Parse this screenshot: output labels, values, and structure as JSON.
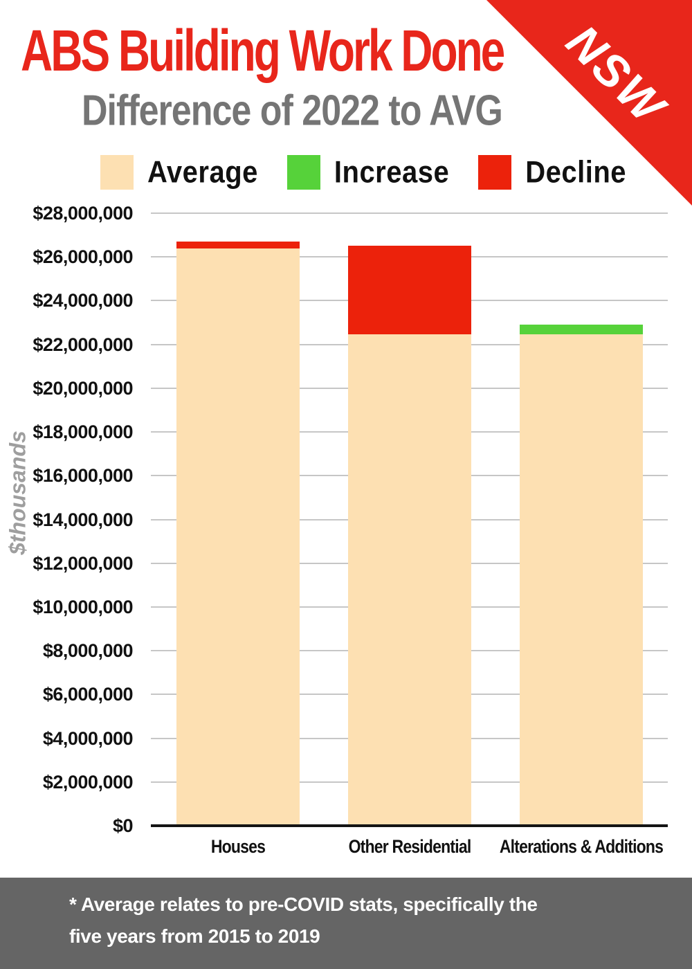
{
  "header": {
    "title": "ABS Building Work Done",
    "subtitle": "Difference of 2022 to AVG",
    "ribbon_label": "NSW"
  },
  "colors": {
    "title_red": "#e8261b",
    "average_fill": "#fde0b2",
    "increase_fill": "#56d23a",
    "decline_fill": "#ec220b",
    "subtitle_gray": "#757575",
    "footer_gray": "#656565"
  },
  "legend": {
    "items": [
      {
        "label": "Average",
        "color": "#fde0b2"
      },
      {
        "label": "Increase",
        "color": "#56d23a"
      },
      {
        "label": "Decline",
        "color": "#ec220b"
      }
    ]
  },
  "chart_data": {
    "type": "bar",
    "stacked": true,
    "title": "ABS Building Work Done",
    "subtitle": "Difference of 2022 to AVG",
    "region": "NSW",
    "categories": [
      "Houses",
      "Other Residential",
      "Alterations & Additions"
    ],
    "series": [
      {
        "name": "Average (pre-COVID 2015-2019)",
        "values": [
          26700000,
          26500000,
          22450000
        ]
      },
      {
        "name": "2022",
        "values": [
          26400000,
          22450000,
          22900000
        ]
      }
    ],
    "bars": [
      {
        "category": "Houses",
        "average": 26700000,
        "value_2022": 26400000,
        "direction": "decline"
      },
      {
        "category": "Other Residential",
        "average": 26500000,
        "value_2022": 22450000,
        "direction": "decline"
      },
      {
        "category": "Alterations & Additions",
        "average": 22450000,
        "value_2022": 22900000,
        "direction": "increase"
      }
    ],
    "ylabel": "$thousands",
    "xlabel": "",
    "ylim": [
      0,
      28000000
    ],
    "y_tick_step": 2000000,
    "y_ticks": [
      {
        "value": 0,
        "label": "$0"
      },
      {
        "value": 2000000,
        "label": "$2,000,000"
      },
      {
        "value": 4000000,
        "label": "$4,000,000"
      },
      {
        "value": 6000000,
        "label": "$6,000,000"
      },
      {
        "value": 8000000,
        "label": "$8,000,000"
      },
      {
        "value": 10000000,
        "label": "$10,000,000"
      },
      {
        "value": 12000000,
        "label": "$12,000,000"
      },
      {
        "value": 14000000,
        "label": "$14,000,000"
      },
      {
        "value": 16000000,
        "label": "$16,000,000"
      },
      {
        "value": 18000000,
        "label": "$18,000,000"
      },
      {
        "value": 20000000,
        "label": "$20,000,000"
      },
      {
        "value": 22000000,
        "label": "$22,000,000"
      },
      {
        "value": 24000000,
        "label": "$24,000,000"
      },
      {
        "value": 26000000,
        "label": "$26,000,000"
      },
      {
        "value": 28000000,
        "label": "$28,000,000"
      }
    ],
    "grid": "horizontal",
    "legend_position": "top"
  },
  "footer": {
    "note": "* Average relates to pre-COVID stats, specifically the five years from 2015 to 2019",
    "line1": "* Average relates to pre-COVID stats, specifically the",
    "line2": "five years from 2015 to 2019"
  }
}
